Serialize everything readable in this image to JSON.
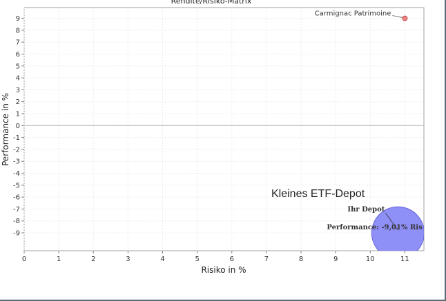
{
  "chart_data": {
    "type": "scatter",
    "title": "Rendite/Risiko-Matrix",
    "xlabel": "Risiko in %",
    "ylabel": "Performance in %",
    "xlim": [
      0,
      11.55
    ],
    "ylim": [
      -10.5,
      9.9
    ],
    "x_ticks": [
      0,
      1,
      2,
      3,
      4,
      5,
      6,
      7,
      8,
      9,
      10,
      11
    ],
    "y_ticks": [
      9,
      8,
      7,
      6,
      5,
      4,
      3,
      2,
      1,
      0,
      -1,
      -2,
      -3,
      -4,
      -5,
      -6,
      -7,
      -8,
      -9
    ],
    "grid": true,
    "points": [
      {
        "name": "Carmignac Patrimoine",
        "x": 11.0,
        "y": 9.0,
        "color": "#f08080"
      }
    ],
    "bubbles": [
      {
        "name": "Ihr Depot",
        "x": 10.8,
        "y": -9.01,
        "label": "Performance: -9,01% Ris",
        "color": "#7b7bf7"
      }
    ],
    "annotation": "Kleines ETF-Depot"
  }
}
